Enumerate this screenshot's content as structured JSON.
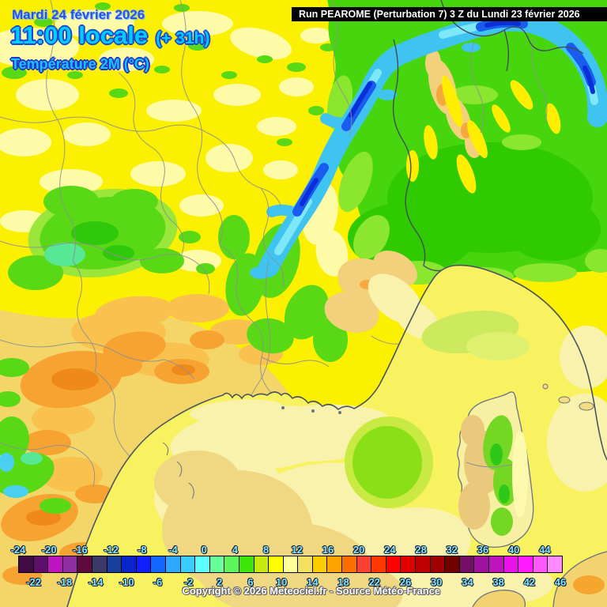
{
  "header": {
    "date": "Mardi 24 février 2026",
    "time": "11:00 locale",
    "time_offset": "(+ 31h)",
    "product": "Température 2M (°C)"
  },
  "run_info": {
    "text": "Run PEAROME (Perturbation 7) 3 Z du Lundi 23 février 2026"
  },
  "footer": {
    "copyright": "Copyright © 2026 Meteociel.fr - Source Météo-France"
  },
  "scale": {
    "unit": "°C",
    "top_labels": [
      "-24",
      "-20",
      "-16",
      "-12",
      "-8",
      "-4",
      "0",
      "4",
      "8",
      "12",
      "16",
      "20",
      "24",
      "28",
      "32",
      "36",
      "40",
      "44"
    ],
    "bottom_labels": [
      "-22",
      "-18",
      "-14",
      "-10",
      "-6",
      "-2",
      "2",
      "6",
      "10",
      "14",
      "18",
      "22",
      "26",
      "30",
      "34",
      "38",
      "42",
      "46"
    ],
    "cell_colors": [
      "#400a42",
      "#5e0f6e",
      "#c013c0",
      "#8f2da3",
      "#5e0a3d",
      "#3a3a69",
      "#17409c",
      "#0a24cc",
      "#0f1fff",
      "#1166ff",
      "#2fa8ff",
      "#38ccff",
      "#5cffff",
      "#66ff99",
      "#5ff55f",
      "#3ee60a",
      "#c6ea0f",
      "#ffff00",
      "#ffff99",
      "#f2e05f",
      "#ffcc00",
      "#ffa300",
      "#ff6f00",
      "#fa4133",
      "#ff3800",
      "#ff0000",
      "#e00000",
      "#c00000",
      "#a00000",
      "#700000",
      "#731066",
      "#9e12a0",
      "#c013c0",
      "#e913e9",
      "#ff1aff",
      "#ff57ff",
      "#ff8aff"
    ],
    "label_color": "#7fe9ff"
  },
  "map": {
    "palette": {
      "land_yellow": "#fbf000",
      "land_pale_yellow": "#fdfba8",
      "land_sand": "#f4d668",
      "warm_orange": "#f7a332",
      "green": "#47d60e",
      "mountain_cyan": "#3fc4f2",
      "mountain_blue": "#1a5cf0",
      "sea_pale": "#f8f2ac",
      "sea_khaki": "#f0d883",
      "department_line": "#8d9091",
      "coastline": "#4a5560"
    }
  }
}
